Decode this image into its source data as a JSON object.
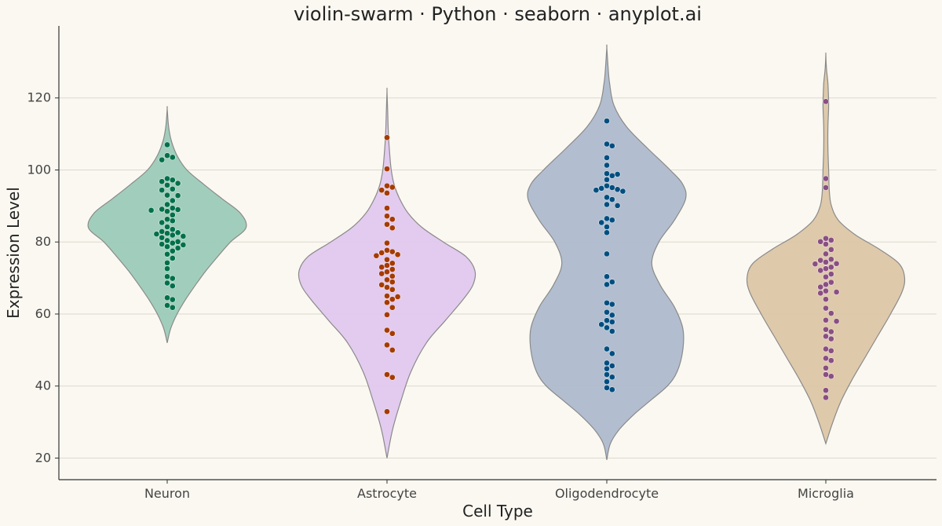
{
  "chart_data": {
    "type": "violin-swarm",
    "title": "violin-swarm · Python · seaborn · anyplot.ai",
    "xlabel": "Cell Type",
    "ylabel": "Expression Level",
    "ylim": [
      14,
      140
    ],
    "yticks": [
      20,
      40,
      60,
      80,
      100,
      120
    ],
    "grid": "horizontal",
    "categories": [
      "Neuron",
      "Astrocyte",
      "Oligodendrocyte",
      "Microglia"
    ],
    "series": [
      {
        "name": "Neuron",
        "violin_color": "#9ccbb8",
        "point_color": "#00704a",
        "violin_range": [
          52,
          117
        ],
        "violin_profile": [
          [
            52,
            0
          ],
          [
            56,
            5
          ],
          [
            60,
            14
          ],
          [
            64,
            26
          ],
          [
            68,
            40
          ],
          [
            72,
            55
          ],
          [
            76,
            72
          ],
          [
            80,
            90
          ],
          [
            84,
            112
          ],
          [
            88,
            104
          ],
          [
            92,
            78
          ],
          [
            96,
            52
          ],
          [
            100,
            28
          ],
          [
            104,
            14
          ],
          [
            108,
            6
          ],
          [
            112,
            2
          ],
          [
            117,
            0
          ]
        ],
        "points": [
          107,
          104,
          103.5,
          102.8,
          97.6,
          97.2,
          96.8,
          96.3,
          95.8,
          94.7,
          94.4,
          93,
          92.9,
          91.5,
          90.4,
          89.4,
          89.1,
          89,
          88.8,
          88.5,
          87.5,
          86.3,
          85.9,
          85.4,
          84.2,
          83.5,
          82.9,
          82.6,
          82.4,
          82.2,
          81.9,
          81.6,
          81.2,
          80.4,
          80.1,
          79.7,
          79.4,
          79.2,
          78.7,
          78.3,
          77.5,
          76.6,
          75.5,
          74.2,
          72.6,
          70.4,
          69.9,
          68.6,
          67.8,
          64.5,
          64,
          62.4,
          61.8
        ]
      },
      {
        "name": "Astrocyte",
        "violin_color": "#e0c8ee",
        "point_color": "#a63b00",
        "violin_range": [
          20,
          122
        ],
        "violin_profile": [
          [
            20,
            0
          ],
          [
            28,
            8
          ],
          [
            36,
            20
          ],
          [
            44,
            34
          ],
          [
            52,
            56
          ],
          [
            58,
            82
          ],
          [
            64,
            108
          ],
          [
            68,
            122
          ],
          [
            72,
            125
          ],
          [
            76,
            112
          ],
          [
            80,
            80
          ],
          [
            84,
            50
          ],
          [
            88,
            30
          ],
          [
            92,
            18
          ],
          [
            96,
            10
          ],
          [
            100,
            6
          ],
          [
            104,
            4
          ],
          [
            110,
            2
          ],
          [
            116,
            1
          ],
          [
            122,
            0
          ]
        ],
        "points": [
          109,
          100.3,
          95.6,
          95.2,
          94.4,
          93.6,
          89.4,
          87.2,
          86.3,
          84.9,
          83.9,
          79.7,
          77.7,
          77.3,
          77,
          76.5,
          76.2,
          75.1,
          74.1,
          73.5,
          73,
          72.4,
          71.7,
          71.2,
          70.5,
          69.5,
          68.9,
          68.1,
          67.4,
          66.8,
          65,
          64.8,
          64.1,
          63.2,
          61.8,
          59.8,
          55.5,
          54.6,
          51.4,
          50,
          43.2,
          42.4,
          32.9
        ]
      },
      {
        "name": "Oligodendrocyte",
        "violin_color": "#aebbcc",
        "point_color": "#004e80",
        "violin_range": [
          19.5,
          134
        ],
        "violin_profile": [
          [
            19.5,
            0
          ],
          [
            24,
            5
          ],
          [
            28,
            18
          ],
          [
            32,
            38
          ],
          [
            36,
            62
          ],
          [
            40,
            86
          ],
          [
            44,
            100
          ],
          [
            50,
            108
          ],
          [
            56,
            108
          ],
          [
            62,
            96
          ],
          [
            68,
            76
          ],
          [
            74,
            64
          ],
          [
            80,
            74
          ],
          [
            86,
            96
          ],
          [
            92,
            112
          ],
          [
            96,
            108
          ],
          [
            100,
            90
          ],
          [
            106,
            58
          ],
          [
            112,
            28
          ],
          [
            118,
            10
          ],
          [
            124,
            4
          ],
          [
            128,
            2
          ],
          [
            134,
            0
          ]
        ],
        "points": [
          113.6,
          107.2,
          106.7,
          103.4,
          101.3,
          99,
          98.8,
          98.4,
          97.3,
          95.6,
          95.1,
          94.9,
          94.6,
          94.4,
          94.1,
          92.4,
          91.8,
          90.4,
          90.1,
          86.5,
          86.1,
          85.4,
          84.2,
          82.6,
          76.7,
          70.4,
          68.9,
          68.2,
          63.1,
          62.7,
          60.5,
          59.7,
          58.2,
          57.8,
          57.1,
          56.2,
          55.2,
          50.3,
          49,
          46.4,
          45.6,
          44.8,
          43.2,
          42.5,
          41.2,
          39.5,
          39
        ]
      },
      {
        "name": "Microglia",
        "violin_color": "#dcc6a6",
        "point_color": "#8a4f82",
        "violin_range": [
          24,
          132
        ],
        "violin_profile": [
          [
            24,
            0
          ],
          [
            30,
            10
          ],
          [
            36,
            22
          ],
          [
            42,
            38
          ],
          [
            48,
            56
          ],
          [
            54,
            74
          ],
          [
            60,
            92
          ],
          [
            66,
            108
          ],
          [
            70,
            112
          ],
          [
            74,
            104
          ],
          [
            78,
            76
          ],
          [
            82,
            42
          ],
          [
            86,
            18
          ],
          [
            90,
            8
          ],
          [
            94,
            5
          ],
          [
            100,
            4
          ],
          [
            106,
            3
          ],
          [
            112,
            3
          ],
          [
            118,
            4
          ],
          [
            124,
            3
          ],
          [
            128,
            1
          ],
          [
            132,
            0
          ]
        ],
        "points": [
          119,
          97.6,
          95.1,
          81,
          80.5,
          80.1,
          79.4,
          77.9,
          76.7,
          75.2,
          74.9,
          74.4,
          74,
          73.9,
          73,
          72.6,
          72.1,
          71.1,
          70.3,
          68.8,
          68.2,
          67.5,
          66.4,
          66.1,
          65.8,
          64.1,
          61.6,
          60.2,
          58.3,
          58,
          55.7,
          55.1,
          53.8,
          53.1,
          50.3,
          49.8,
          47.7,
          47.1,
          45,
          43.2,
          42.7,
          38.8,
          36.8
        ]
      }
    ]
  }
}
